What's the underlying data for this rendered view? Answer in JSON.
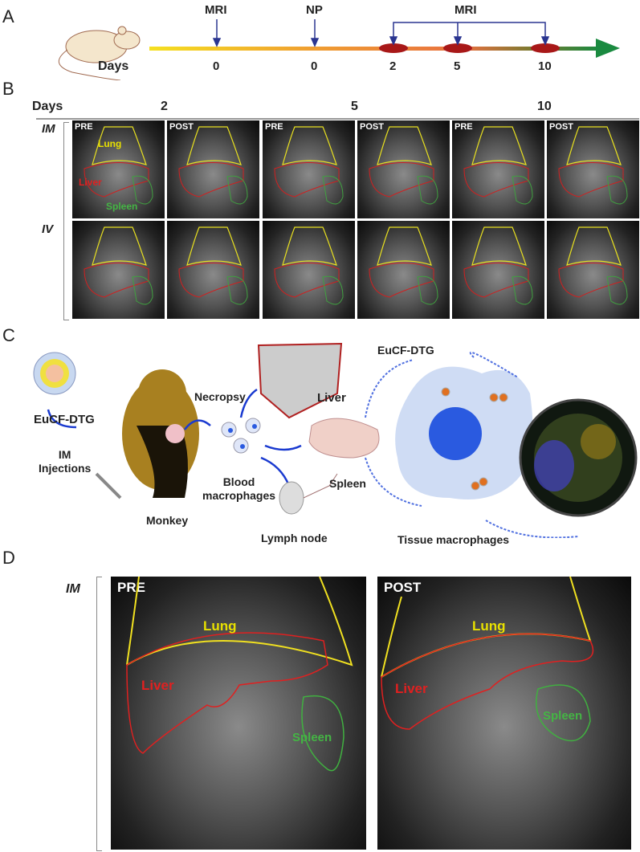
{
  "panels": {
    "a": {
      "label": "A",
      "days_label": "Days",
      "events": [
        {
          "label": "MRI",
          "day": "0"
        },
        {
          "label": "NP",
          "day": "0"
        }
      ],
      "mri_followup": {
        "label": "MRI",
        "days": [
          "2",
          "5",
          "10"
        ]
      },
      "colors": {
        "start": "#f5e020",
        "mid": "#e87040",
        "end": "#1a8a40",
        "marker": "#a81818",
        "arrow": "#2a3590"
      }
    },
    "b": {
      "label": "B",
      "days_label": "Days",
      "days": [
        "2",
        "5",
        "10"
      ],
      "rows": [
        "IM",
        "IV"
      ],
      "columns": [
        "PRE",
        "POST",
        "PRE",
        "POST",
        "PRE",
        "POST"
      ],
      "organ_labels": {
        "lung": "Lung",
        "liver": "Liver",
        "spleen": "Spleen"
      }
    },
    "c": {
      "label": "C",
      "nanoparticle": "EuCF-DTG",
      "route": "IM\nInjections",
      "animal": "Monkey",
      "necropsy": "Necropsy",
      "blood": "Blood\nmacrophages",
      "liver": "Liver",
      "spleen": "Spleen",
      "lymph": "Lymph node",
      "cell_np": "EuCF-DTG",
      "tissue": "Tissue macrophages"
    },
    "d": {
      "label": "D",
      "row": "IM",
      "images": [
        {
          "tag": "PRE",
          "lung": "Lung",
          "liver": "Liver",
          "spleen": "Spleen"
        },
        {
          "tag": "POST",
          "lung": "Lung",
          "liver": "Liver",
          "spleen": "Spleen"
        }
      ]
    }
  }
}
